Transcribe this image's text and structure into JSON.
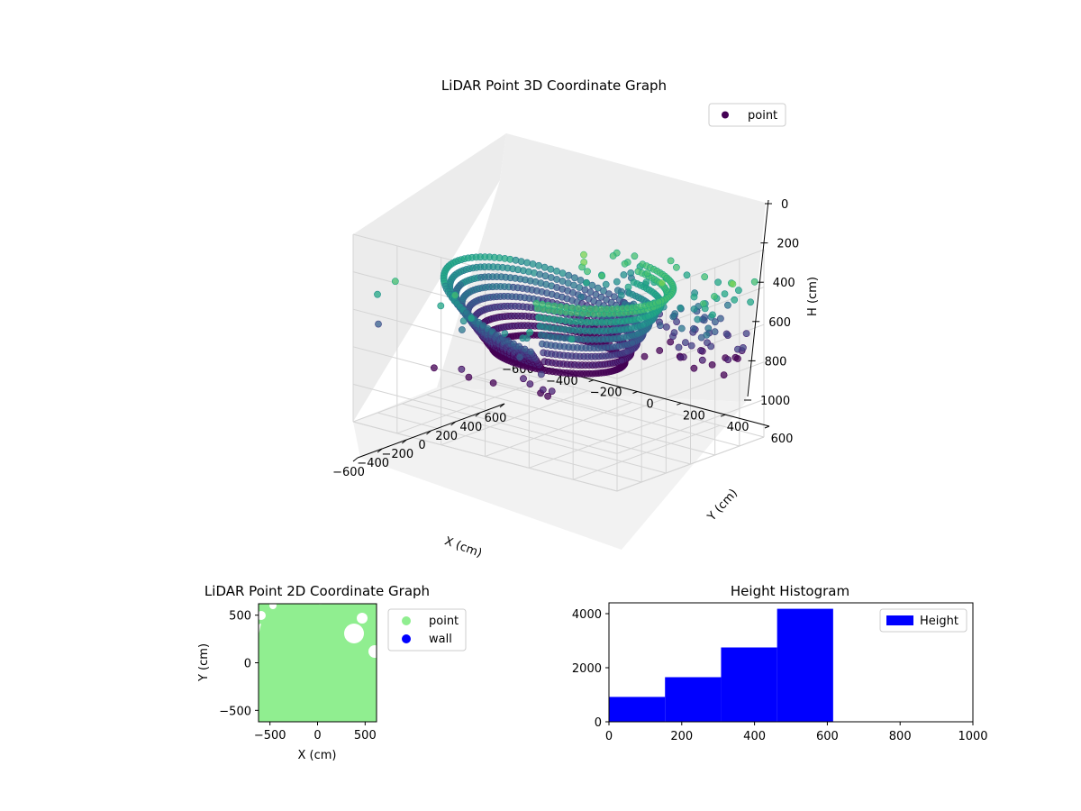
{
  "chart_data": [
    {
      "type": "scatter",
      "projection": "3d",
      "title": "LiDAR Point 3D Coordinate Graph",
      "xlabel": "X (cm)",
      "ylabel": "Y (cm)",
      "zlabel": "H (cm)",
      "xlim": [
        -600,
        600
      ],
      "ylim": [
        -600,
        600
      ],
      "zlim": [
        1000,
        0
      ],
      "z_axis_inverted": true,
      "xticks": [
        "−600",
        "−400",
        "−200",
        "0",
        "200",
        "400",
        "600"
      ],
      "yticks": [
        "−600",
        "−400",
        "−200",
        "0",
        "200",
        "400",
        "600"
      ],
      "zticks": [
        "0",
        "200",
        "400",
        "600",
        "800",
        "1000"
      ],
      "grid": true,
      "colormap": "viridis",
      "legend": {
        "placement": "top-right",
        "entries": [
          {
            "label": "point",
            "color": "#440154"
          }
        ]
      },
      "series": [
        {
          "name": "point",
          "description_points": [
            {
              "x": -480,
              "y": -420,
              "z": 480
            },
            {
              "x": -300,
              "y": -520,
              "z": 560
            },
            {
              "x": 0,
              "y": -560,
              "z": 600
            },
            {
              "x": 300,
              "y": -480,
              "z": 590
            },
            {
              "x": 480,
              "y": -300,
              "z": 540
            },
            {
              "x": 500,
              "y": 200,
              "z": 420
            },
            {
              "x": 200,
              "y": 500,
              "z": 260
            },
            {
              "x": -200,
              "y": 520,
              "z": 200
            },
            {
              "x": -480,
              "y": 300,
              "z": 300
            },
            {
              "x": 0,
              "y": 0,
              "z": 580
            },
            {
              "x": 150,
              "y": -100,
              "z": 560
            },
            {
              "x": -150,
              "y": 100,
              "z": 540
            },
            {
              "x": 300,
              "y": 300,
              "z": 220
            },
            {
              "x": 350,
              "y": 250,
              "z": 120
            }
          ]
        }
      ]
    },
    {
      "type": "scatter",
      "title": "LiDAR Point 2D Coordinate Graph",
      "xlabel": "X (cm)",
      "ylabel": "Y (cm)",
      "xlim": [
        -620,
        620
      ],
      "ylim": [
        -620,
        620
      ],
      "xticks": [
        "−500",
        "0",
        "500"
      ],
      "yticks": [
        "−500",
        "0",
        "500"
      ],
      "legend": {
        "placement": "right",
        "entries": [
          {
            "label": "point",
            "color": "#90ee90"
          },
          {
            "label": "wall",
            "color": "#0000ff"
          }
        ]
      },
      "series": [
        {
          "name": "point",
          "color": "#90ee90",
          "fill_region": "dense disc of points covering nearly the full -620..620 square, gaps at top-right edge"
        },
        {
          "name": "wall",
          "color": "#0000ff",
          "values": []
        }
      ]
    },
    {
      "type": "bar",
      "title": "Height Histogram",
      "xlabel": "",
      "ylabel": "",
      "xlim": [
        0,
        1000
      ],
      "ylim": [
        0,
        4400
      ],
      "xticks": [
        "0",
        "200",
        "400",
        "600",
        "800",
        "1000"
      ],
      "yticks": [
        "0",
        "2000",
        "4000"
      ],
      "legend": {
        "placement": "top-right",
        "entries": [
          {
            "label": "Height",
            "color": "#0000ff"
          }
        ]
      },
      "bins": [
        {
          "from": 0,
          "to": 154,
          "count": 920
        },
        {
          "from": 154,
          "to": 308,
          "count": 1650
        },
        {
          "from": 308,
          "to": 462,
          "count": 2750
        },
        {
          "from": 462,
          "to": 616,
          "count": 4180
        },
        {
          "from": 616,
          "to": 770,
          "count": 12
        },
        {
          "from": 770,
          "to": 924,
          "count": 10
        },
        {
          "from": 924,
          "to": 1078,
          "count": 8
        }
      ]
    }
  ]
}
